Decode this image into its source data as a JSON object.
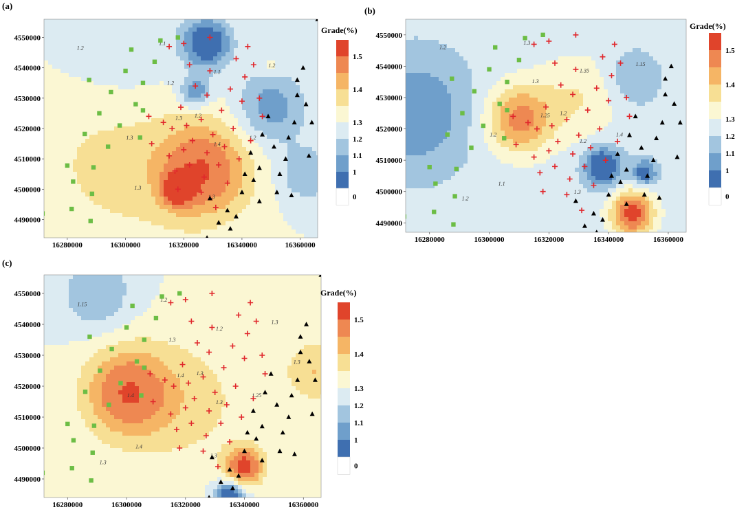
{
  "colors": {
    "scale": [
      "#ffffff",
      "#3f6fb0",
      "#6f9fcb",
      "#a2c5df",
      "#dcebf2",
      "#fbf7d3",
      "#f7df94",
      "#f5b565",
      "#ee8852",
      "#e0442b"
    ],
    "marker_square": "#6cbd45",
    "marker_plus": "#e0262b",
    "marker_triangle": "#000000"
  },
  "colorbar": {
    "title": "Grade(%)",
    "ticks_abc": [
      "1.5",
      "1.4",
      "1.3",
      "1.2",
      "1.1",
      "1",
      "0"
    ],
    "ticks_c": [
      "1.5",
      "1.4",
      "1.3",
      "1.2",
      "1.1",
      "1",
      "0"
    ]
  },
  "chart_data": [
    {
      "type": "heatmap",
      "panel": "(a)",
      "x_ticks": [
        "16280000",
        "16300000",
        "16320000",
        "16340000",
        "16360000"
      ],
      "y_ticks": [
        "4550000",
        "4540000",
        "4530000",
        "4520000",
        "4510000",
        "4500000",
        "4490000"
      ],
      "xlim": [
        16272000,
        16366000
      ],
      "ylim": [
        4484000,
        4556000
      ],
      "colorbar_title": "Grade(%)",
      "contour_levels": [
        0,
        1,
        1.1,
        1.2,
        1.3,
        1.4,
        1.5
      ],
      "contour_labels": [
        "1.2",
        "1.1",
        "1.1",
        "1.2",
        "1.2",
        "1.3",
        "1.3",
        "1.4",
        "1.2",
        "1.3",
        "1.3",
        "1.2"
      ],
      "highs": [
        {
          "x": 16327000,
          "y": 4506000,
          "value": 1.45,
          "spread": 15000
        },
        {
          "x": 16318000,
          "y": 4500000,
          "value": 1.5,
          "spread": 5000
        },
        {
          "x": 16299000,
          "y": 4510000,
          "value": 1.32,
          "spread": 30000
        },
        {
          "x": 16350000,
          "y": 4540000,
          "value": 1.3,
          "spread": 3000
        }
      ],
      "lows": [
        {
          "x": 16328000,
          "y": 4548000,
          "value": 1.02,
          "spread": 8000
        },
        {
          "x": 16324000,
          "y": 4532000,
          "value": 1.1,
          "spread": 5000
        },
        {
          "x": 16350000,
          "y": 4527000,
          "value": 1.12,
          "spread": 12000
        },
        {
          "x": 16300000,
          "y": 4545000,
          "value": 1.2,
          "spread": 22000
        },
        {
          "x": 16362000,
          "y": 4505000,
          "value": 1.15,
          "spread": 9000
        }
      ],
      "base": 1.25
    },
    {
      "type": "heatmap",
      "panel": "(b)",
      "x_ticks": [
        "16280000",
        "16300000",
        "16320000",
        "16340000",
        "16360000"
      ],
      "y_ticks": [
        "4550000",
        "4540000",
        "4530000",
        "4520000",
        "4510000",
        "4500000",
        "4490000"
      ],
      "xlim": [
        16272000,
        16366000
      ],
      "ylim": [
        4487000,
        4555000
      ],
      "colorbar_title": "Grade(%)",
      "contour_levels": [
        0,
        1,
        1.1,
        1.2,
        1.3,
        1.4,
        1.5
      ],
      "contour_labels": [
        "1.2",
        "1.3",
        "1.35",
        "1.3",
        "1.15",
        "1.25",
        "1.2",
        "1.2",
        "1.2",
        "1.1",
        "1.3",
        "1.4",
        "1.2"
      ],
      "highs": [
        {
          "x": 16310000,
          "y": 4523000,
          "value": 1.42,
          "spread": 11000
        },
        {
          "x": 16348000,
          "y": 4493000,
          "value": 1.5,
          "spread": 7000
        },
        {
          "x": 16330000,
          "y": 4530000,
          "value": 1.3,
          "spread": 14000
        }
      ],
      "lows": [
        {
          "x": 16275000,
          "y": 4525000,
          "value": 1.1,
          "spread": 18000
        },
        {
          "x": 16338000,
          "y": 4508000,
          "value": 1.0,
          "spread": 6000
        },
        {
          "x": 16352000,
          "y": 4506000,
          "value": 1.05,
          "spread": 4000
        },
        {
          "x": 16348000,
          "y": 4536000,
          "value": 1.15,
          "spread": 9000
        }
      ],
      "base": 1.22
    },
    {
      "type": "heatmap",
      "panel": "(c)",
      "x_ticks": [
        "16280000",
        "16300000",
        "16320000",
        "16340000",
        "16360000"
      ],
      "y_ticks": [
        "4550000",
        "4540000",
        "4530000",
        "4520000",
        "4510000",
        "4500000",
        "4490000"
      ],
      "xlim": [
        16272000,
        16366000
      ],
      "ylim": [
        4484000,
        4556000
      ],
      "colorbar_title": "Grade(%)",
      "contour_levels": [
        0,
        1,
        1.1,
        1.2,
        1.3,
        1.4,
        1.5
      ],
      "contour_labels": [
        "1.15",
        "1.2",
        "1.2",
        "1.3",
        "1.3",
        "1.4",
        "1.4",
        "1.3",
        "1.3",
        "1.4",
        "1.3",
        "1.25",
        "1.3",
        "1.3"
      ],
      "highs": [
        {
          "x": 16300000,
          "y": 4518000,
          "value": 1.45,
          "spread": 14000
        },
        {
          "x": 16340000,
          "y": 4494000,
          "value": 1.5,
          "spread": 6000
        },
        {
          "x": 16364000,
          "y": 4525000,
          "value": 1.35,
          "spread": 10000
        },
        {
          "x": 16320000,
          "y": 4515000,
          "value": 1.32,
          "spread": 22000
        }
      ],
      "lows": [
        {
          "x": 16290000,
          "y": 4550000,
          "value": 1.15,
          "spread": 12000
        },
        {
          "x": 16335000,
          "y": 4484000,
          "value": 1.0,
          "spread": 5000
        }
      ],
      "base": 1.25
    }
  ],
  "samples": {
    "squares": [
      [
        16271500,
        4492000
      ],
      [
        16280000,
        4507800
      ],
      [
        16282000,
        4502500
      ],
      [
        16281500,
        4493500
      ],
      [
        16288000,
        4489500
      ],
      [
        16288500,
        4498500
      ],
      [
        16289000,
        4507200
      ],
      [
        16286000,
        4518200
      ],
      [
        16287500,
        4536000
      ],
      [
        16291000,
        4525000
      ],
      [
        16294000,
        4514000
      ],
      [
        16295000,
        4532000
      ],
      [
        16298000,
        4521000
      ],
      [
        16300000,
        4539000
      ],
      [
        16302000,
        4546000
      ],
      [
        16303500,
        4528000
      ],
      [
        16306000,
        4535000
      ],
      [
        16305000,
        4517000
      ],
      [
        16306000,
        4526000
      ],
      [
        16310000,
        4542000
      ],
      [
        16312000,
        4549000
      ],
      [
        16318000,
        4550000
      ]
    ],
    "plus": [
      [
        16308000,
        4524000
      ],
      [
        16309000,
        4515000
      ],
      [
        16313000,
        4522000
      ],
      [
        16315000,
        4511000
      ],
      [
        16316000,
        4520000
      ],
      [
        16317000,
        4506000
      ],
      [
        16318000,
        4500000
      ],
      [
        16319000,
        4527000
      ],
      [
        16320000,
        4513000
      ],
      [
        16321000,
        4521000
      ],
      [
        16322000,
        4508000
      ],
      [
        16323000,
        4516000
      ],
      [
        16324000,
        4534000
      ],
      [
        16326000,
        4523000
      ],
      [
        16326000,
        4499000
      ],
      [
        16327000,
        4504000
      ],
      [
        16328000,
        4512000
      ],
      [
        16328000,
        4531000
      ],
      [
        16329000,
        4539000
      ],
      [
        16330000,
        4518000
      ],
      [
        16331000,
        4494000
      ],
      [
        16332000,
        4508000
      ],
      [
        16333000,
        4526000
      ],
      [
        16334000,
        4514000
      ],
      [
        16335000,
        4502000
      ],
      [
        16336000,
        4533000
      ],
      [
        16337000,
        4520000
      ],
      [
        16338000,
        4543000
      ],
      [
        16339000,
        4510000
      ],
      [
        16340000,
        4529000
      ],
      [
        16341000,
        4537000
      ],
      [
        16342000,
        4547000
      ],
      [
        16343000,
        4516000
      ],
      [
        16344000,
        4541000
      ],
      [
        16346000,
        4530000
      ],
      [
        16347000,
        4524000
      ],
      [
        16322000,
        4541000
      ],
      [
        16315000,
        4547000
      ],
      [
        16320000,
        4548000
      ],
      [
        16329000,
        4550000
      ]
    ],
    "triangles": [
      [
        16328000,
        4484000
      ],
      [
        16329000,
        4497000
      ],
      [
        16332000,
        4489000
      ],
      [
        16335000,
        4493000
      ],
      [
        16338000,
        4491000
      ],
      [
        16340000,
        4499000
      ],
      [
        16341000,
        4505000
      ],
      [
        16343000,
        4512000
      ],
      [
        16344000,
        4503000
      ],
      [
        16346000,
        4507000
      ],
      [
        16347000,
        4518000
      ],
      [
        16349000,
        4524000
      ],
      [
        16351000,
        4514000
      ],
      [
        16353000,
        4505000
      ],
      [
        16355000,
        4510000
      ],
      [
        16356000,
        4517000
      ],
      [
        16358000,
        4522000
      ],
      [
        16359000,
        4531000
      ],
      [
        16361000,
        4540000
      ],
      [
        16362000,
        4528000
      ],
      [
        16364000,
        4522000
      ],
      [
        16363000,
        4511000
      ],
      [
        16366000,
        4556000
      ],
      [
        16359000,
        4536000
      ],
      [
        16357000,
        4498000
      ],
      [
        16352000,
        4499000
      ],
      [
        16346000,
        4496000
      ],
      [
        16336000,
        4487000
      ]
    ]
  }
}
